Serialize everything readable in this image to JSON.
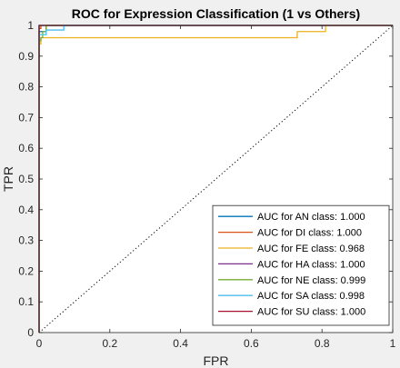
{
  "chart_data": {
    "type": "line",
    "title": "ROC for Expression Classification (1 vs Others)",
    "xlabel": "FPR",
    "ylabel": "TPR",
    "xlim": [
      0,
      1
    ],
    "ylim": [
      0,
      1
    ],
    "xticks": [
      0,
      0.2,
      0.4,
      0.6,
      0.8,
      1
    ],
    "xtick_labels": [
      "0",
      "0.2",
      "0.4",
      "0.6",
      "0.8",
      "1"
    ],
    "yticks": [
      0,
      0.1,
      0.2,
      0.3,
      0.4,
      0.5,
      0.6,
      0.7,
      0.8,
      0.9,
      1
    ],
    "ytick_labels": [
      "0",
      "0.1",
      "0.2",
      "0.3",
      "0.4",
      "0.5",
      "0.6",
      "0.7",
      "0.8",
      "0.9",
      "1"
    ],
    "grid": false,
    "legend_position": "bottom-right",
    "diagonal": {
      "x": [
        0,
        1
      ],
      "y": [
        0,
        1
      ],
      "style": "dotted",
      "color": "#000000"
    },
    "series": [
      {
        "name": "AUC for AN class: 1.000",
        "color": "#0072BD",
        "x": [
          0,
          0,
          0.02,
          0.02,
          1
        ],
        "y": [
          0,
          0.98,
          0.98,
          1,
          1
        ]
      },
      {
        "name": "AUC for DI class: 1.000",
        "color": "#D95319",
        "x": [
          0,
          0,
          0.005,
          0.005,
          1
        ],
        "y": [
          0,
          0.99,
          0.99,
          1,
          1
        ]
      },
      {
        "name": "AUC for FE class: 0.968",
        "color": "#EDB120",
        "x": [
          0,
          0,
          0.005,
          0.005,
          0.73,
          0.73,
          0.81,
          0.81,
          1
        ],
        "y": [
          0,
          0.94,
          0.94,
          0.96,
          0.96,
          0.98,
          0.98,
          1,
          1
        ]
      },
      {
        "name": "AUC for HA class: 1.000",
        "color": "#7E2F8E",
        "x": [
          0,
          0,
          1
        ],
        "y": [
          0,
          1,
          1
        ]
      },
      {
        "name": "AUC for NE class: 0.999",
        "color": "#77AC30",
        "x": [
          0,
          0,
          0.005,
          0.005,
          0.01,
          0.01,
          0.02,
          0.02,
          1
        ],
        "y": [
          0,
          0.95,
          0.95,
          0.96,
          0.96,
          0.98,
          0.98,
          1,
          1
        ]
      },
      {
        "name": "AUC for SA class: 0.998",
        "color": "#4DBEEE",
        "x": [
          0,
          0,
          0.02,
          0.02,
          0.07,
          0.07,
          1
        ],
        "y": [
          0,
          0.97,
          0.97,
          0.985,
          0.985,
          1,
          1
        ]
      },
      {
        "name": "AUC for SU class: 1.000",
        "color": "#A2142F",
        "x": [
          0,
          0,
          1
        ],
        "y": [
          0,
          1,
          1
        ]
      }
    ]
  }
}
